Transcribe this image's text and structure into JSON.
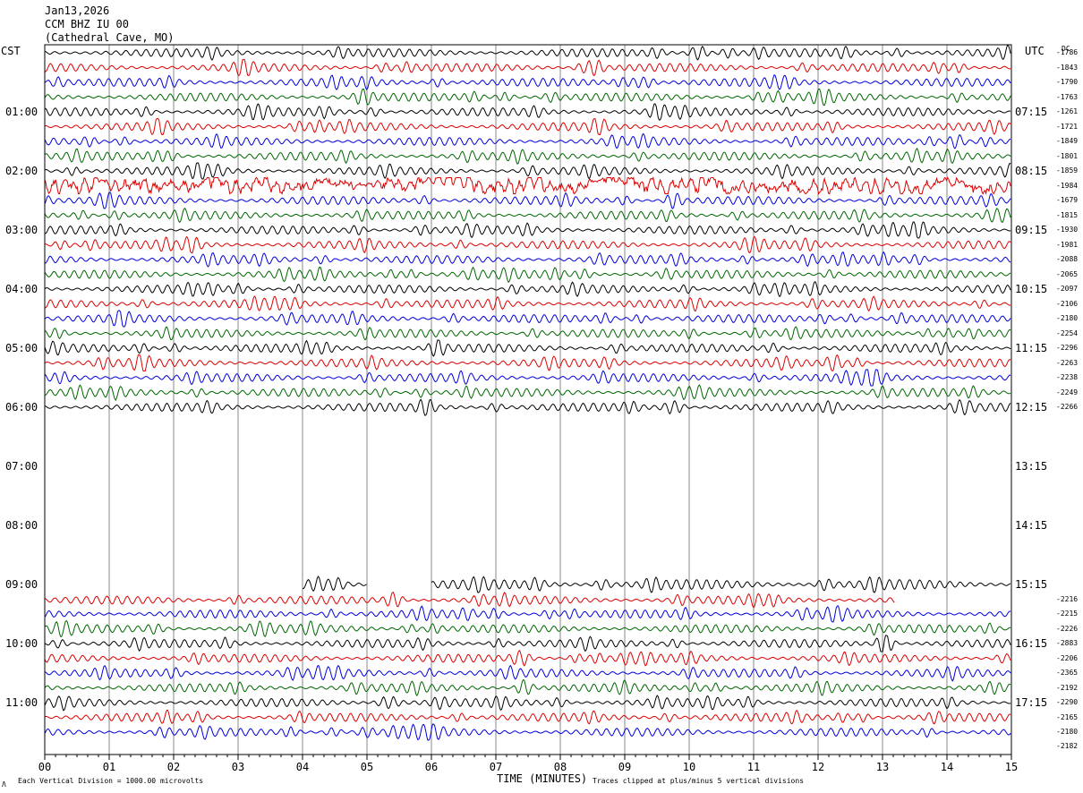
{
  "header": {
    "date": "Jan13,2026",
    "station": "CCM BHZ IU 00",
    "location": "(Cathedral Cave, MO)"
  },
  "left_axis_label": "CST",
  "right_axis_label": "UTC",
  "dc_header": "DC",
  "footer": {
    "scale_note": "Each Vertical Division = 1000.00 microvolts",
    "clip_note": "Traces clipped at plus/minus 5 vertical divisions",
    "corner_mark": "Λ"
  },
  "chart_data": {
    "type": "line",
    "title": "CCM BHZ IU 00 (Cathedral Cave, MO) Jan13,2026",
    "xlabel": "TIME (MINUTES)",
    "ylabel": "",
    "x_ticks": [
      "00",
      "01",
      "02",
      "03",
      "04",
      "05",
      "06",
      "07",
      "08",
      "09",
      "10",
      "11",
      "12",
      "13",
      "14",
      "15"
    ],
    "xlim": [
      0,
      15
    ],
    "grid": true,
    "trace_colors": [
      "#000000",
      "#dd0000",
      "#0000dd",
      "#006600"
    ],
    "left_time_labels": [
      "01:00",
      "02:00",
      "03:00",
      "04:00",
      "05:00",
      "06:00",
      "07:00",
      "08:00",
      "09:00",
      "10:00",
      "11:00"
    ],
    "right_time_labels": [
      "07:15",
      "08:15",
      "09:15",
      "10:15",
      "11:15",
      "12:15",
      "13:15",
      "14:15",
      "15:15",
      "16:15",
      "17:15"
    ],
    "dc_offsets_block1": [
      "-1786",
      "-1843",
      "-1790",
      "-1763",
      "-1261",
      "-1721",
      "-1849",
      "-1801",
      "-1859",
      "-1984",
      "-1679",
      "-1815",
      "-1930",
      "-1981",
      "-2088",
      "-2065",
      "-2097",
      "-2106",
      "-2180",
      "-2254",
      "-2296",
      "-2263",
      "-2238",
      "-2249",
      "-2266"
    ],
    "dc_offsets_block2": [
      "-2216",
      "-2215",
      "-2226",
      "-2883",
      "-2206",
      "-2365",
      "-2192",
      "-2290",
      "-2165",
      "-2180",
      "-2182"
    ],
    "block1_trace_count": 25,
    "gap": "06:15 to 09:00 CST (no data)",
    "block2_first_trace_start_minute": 4.0,
    "block2_first_trace_gap_minutes": [
      5.0,
      6.0
    ],
    "block2_red_trace_end_minute": 13.2,
    "high_noise_trace_cst": "02:15"
  }
}
